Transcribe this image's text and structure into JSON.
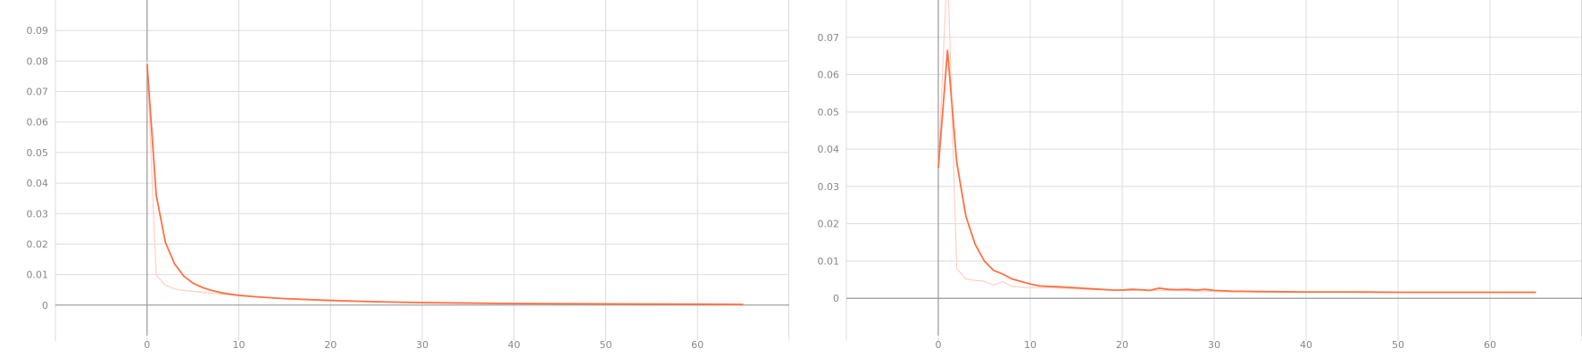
{
  "chart_data": [
    {
      "type": "line",
      "x_range": [
        -10,
        70
      ],
      "y_range": [
        -0.01,
        0.1
      ],
      "grid": true,
      "x_ticks": [
        0,
        10,
        20,
        30,
        40,
        50,
        60
      ],
      "y_ticks": [
        0,
        0.01,
        0.02,
        0.03,
        0.04,
        0.05,
        0.06,
        0.07,
        0.08,
        0.09
      ],
      "x_tick_labels": [
        "0",
        "10",
        "20",
        "30",
        "40",
        "50",
        "60"
      ],
      "y_tick_labels": [
        "0",
        "0.01",
        "0.02",
        "0.03",
        "0.04",
        "0.05",
        "0.06",
        "0.07",
        "0.08",
        "0.09"
      ],
      "colors": {
        "smoothed": "#ff7043",
        "raw": "#ffd0c2",
        "grid": "#dddddd",
        "axis": "#999999"
      },
      "series": [
        {
          "role": "raw",
          "x": [
            0,
            1,
            2,
            3,
            4,
            5,
            6,
            7,
            8,
            9,
            10,
            12,
            15,
            20,
            25,
            30,
            40,
            50,
            60,
            65
          ],
          "y": [
            0.08,
            0.0098,
            0.0065,
            0.0053,
            0.0048,
            0.0045,
            0.0042,
            0.0039,
            0.0036,
            0.0033,
            0.003,
            0.0026,
            0.0022,
            0.0016,
            0.0012,
            0.0009,
            0.0006,
            0.0004,
            0.0003,
            0.0002
          ]
        },
        {
          "role": "smoothed",
          "x": [
            0,
            1,
            2,
            3,
            4,
            5,
            6,
            7,
            8,
            9,
            10,
            12,
            15,
            20,
            25,
            30,
            40,
            50,
            60,
            65
          ],
          "y": [
            0.079,
            0.036,
            0.0205,
            0.0135,
            0.0095,
            0.0072,
            0.0058,
            0.0048,
            0.0041,
            0.0036,
            0.0032,
            0.0027,
            0.0021,
            0.0015,
            0.0011,
            0.0008,
            0.0005,
            0.0004,
            0.0003,
            0.0002
          ]
        }
      ]
    },
    {
      "type": "line",
      "x_range": [
        -10,
        70
      ],
      "y_range": [
        -0.01,
        0.08
      ],
      "grid": true,
      "x_ticks": [
        0,
        10,
        20,
        30,
        40,
        50,
        60
      ],
      "y_ticks": [
        0,
        0.01,
        0.02,
        0.03,
        0.04,
        0.05,
        0.06,
        0.07
      ],
      "x_tick_labels": [
        "0",
        "10",
        "20",
        "30",
        "40",
        "50",
        "60"
      ],
      "y_tick_labels": [
        "0",
        "0.01",
        "0.02",
        "0.03",
        "0.04",
        "0.05",
        "0.06",
        "0.07"
      ],
      "colors": {
        "smoothed": "#ff7043",
        "raw": "#ffd0c2",
        "grid": "#dddddd",
        "axis": "#999999"
      },
      "series": [
        {
          "role": "raw",
          "x": [
            0,
            1,
            2,
            3,
            4,
            5,
            6,
            7,
            8,
            9,
            10,
            12,
            15,
            20,
            25,
            30,
            40,
            50,
            60,
            65
          ],
          "y": [
            0.035,
            0.09,
            0.008,
            0.0052,
            0.0048,
            0.0046,
            0.0035,
            0.0045,
            0.0032,
            0.003,
            0.0028,
            0.0029,
            0.0025,
            0.0021,
            0.0021,
            0.0018,
            0.0016,
            0.0016,
            0.0016,
            0.0016
          ]
        },
        {
          "role": "smoothed",
          "x": [
            0,
            1,
            2,
            3,
            4,
            5,
            6,
            7,
            8,
            9,
            10,
            11,
            13,
            15,
            17,
            19,
            20,
            21,
            22,
            23,
            24,
            25,
            26,
            27,
            28,
            29,
            30,
            32,
            35,
            40,
            45,
            50,
            55,
            60,
            65
          ],
          "y": [
            0.035,
            0.0665,
            0.0365,
            0.022,
            0.0145,
            0.01,
            0.0075,
            0.0065,
            0.0052,
            0.0045,
            0.0038,
            0.0033,
            0.0031,
            0.0028,
            0.0025,
            0.0022,
            0.0022,
            0.0024,
            0.0023,
            0.0021,
            0.0027,
            0.0024,
            0.0023,
            0.0024,
            0.0022,
            0.0024,
            0.0021,
            0.0019,
            0.0018,
            0.0017,
            0.0017,
            0.0016,
            0.0016,
            0.0016,
            0.0016
          ]
        }
      ]
    }
  ]
}
